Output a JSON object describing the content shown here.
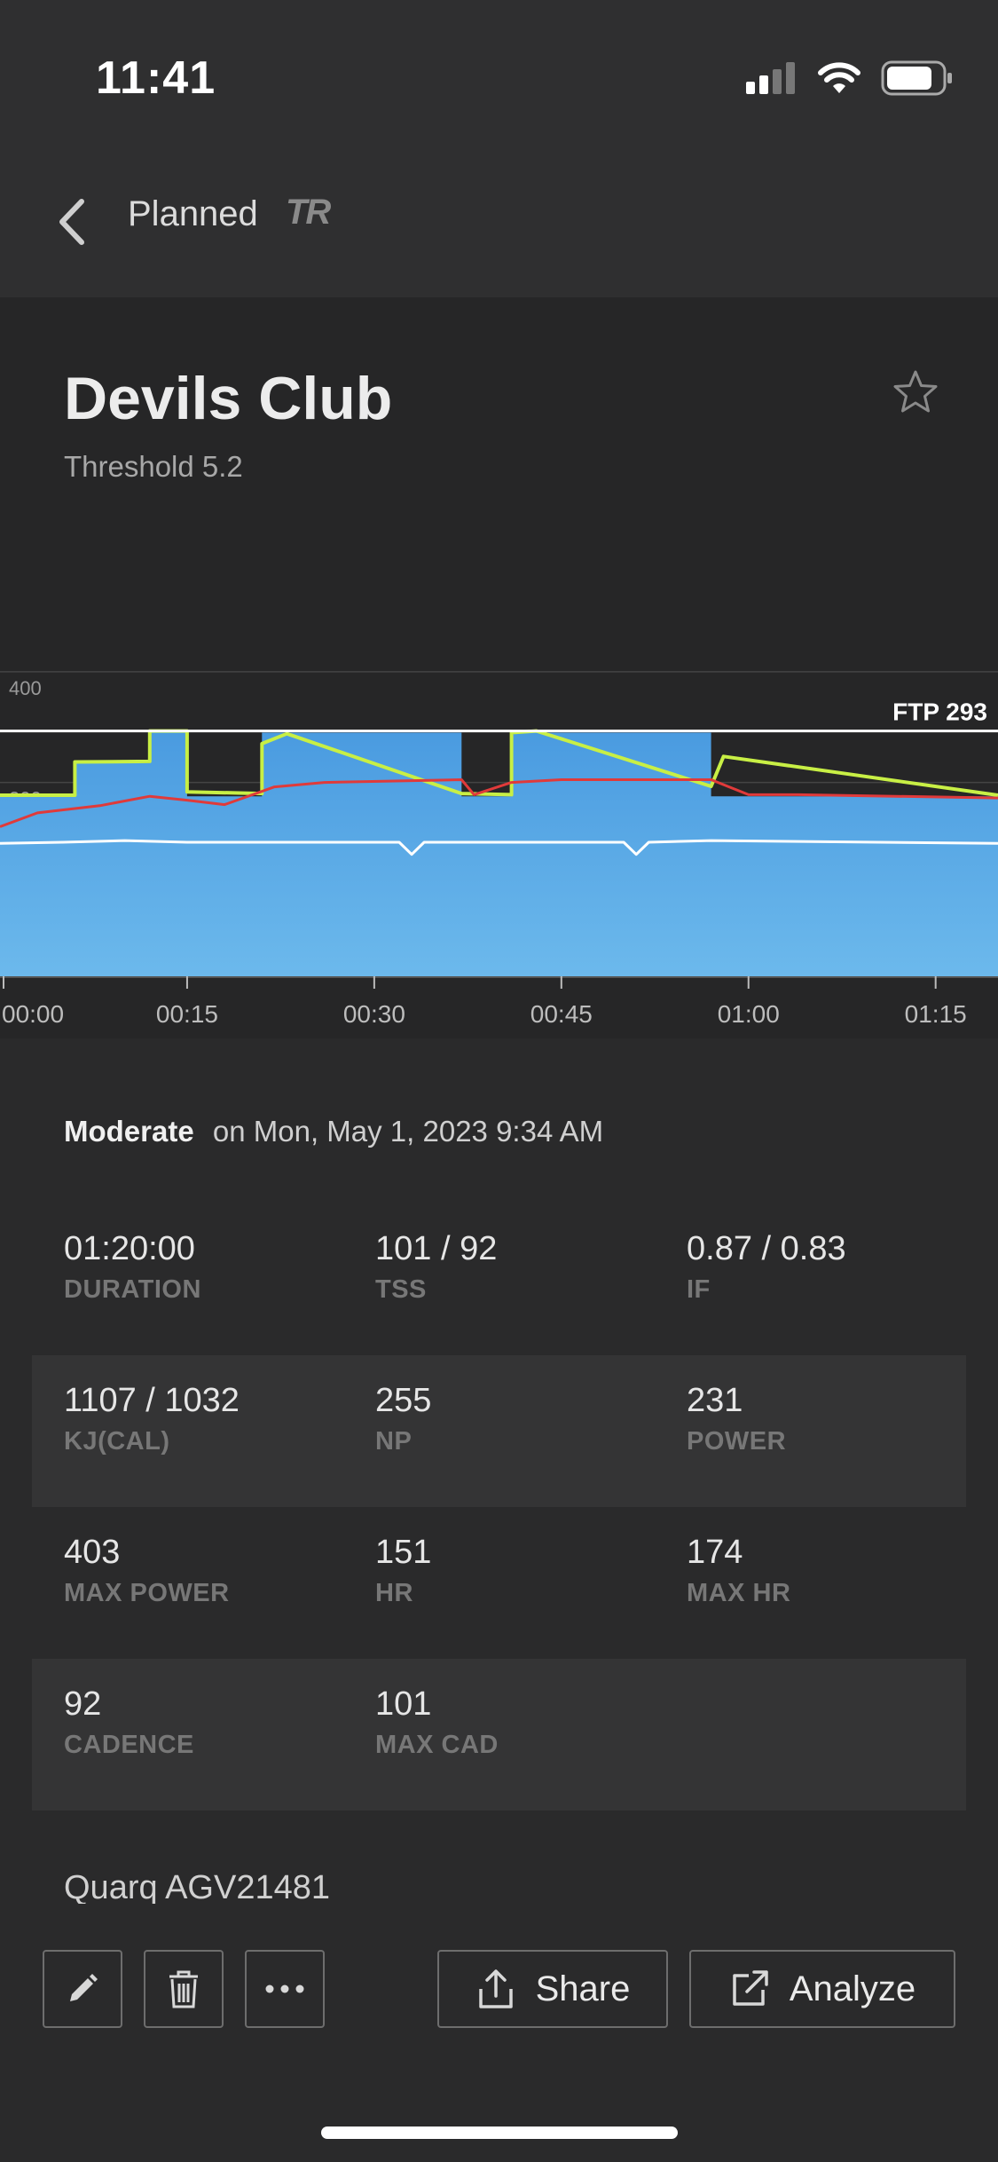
{
  "status_bar": {
    "time": "11:41"
  },
  "nav": {
    "title": "Planned",
    "logo": "TR"
  },
  "workout": {
    "title": "Devils Club",
    "subtitle": "Threshold 5.2"
  },
  "chart_data": {
    "type": "area",
    "x_ticks": [
      "00:00",
      "00:15",
      "00:30",
      "00:45",
      "01:00",
      "01:15"
    ],
    "y_ticks": [
      "400",
      "200"
    ],
    "ftp_label": "FTP 293",
    "x_unit_minutes": [
      0,
      15,
      30,
      45,
      60,
      75
    ],
    "ylim": [
      -150,
      435
    ],
    "ftp": 293,
    "series": [
      {
        "key": "target",
        "color": "#57a8e6",
        "x": [
          0,
          6,
          6,
          12,
          12,
          15,
          15,
          21,
          21,
          37,
          37,
          41,
          41,
          57,
          57,
          80
        ],
        "values": [
          175,
          175,
          235,
          235,
          290,
          290,
          175,
          175,
          290,
          290,
          175,
          175,
          290,
          290,
          175,
          175
        ]
      },
      {
        "key": "power",
        "color": "#c8ef45",
        "x": [
          0,
          6,
          6,
          12,
          12,
          15,
          15,
          21,
          21,
          23,
          37,
          41,
          41,
          43,
          57,
          58,
          80
        ],
        "values": [
          177,
          177,
          237,
          238,
          293,
          293,
          183,
          180,
          270,
          288,
          180,
          178,
          290,
          293,
          193,
          247,
          177
        ]
      },
      {
        "key": "heart_rate",
        "color": "#e03a3a",
        "x": [
          0,
          3,
          8,
          12,
          15,
          18,
          22,
          26,
          37,
          38,
          41,
          45,
          57,
          60,
          64,
          80
        ],
        "values": [
          120,
          145,
          158,
          175,
          168,
          160,
          192,
          200,
          205,
          178,
          200,
          205,
          205,
          178,
          178,
          172
        ]
      },
      {
        "key": "cadence",
        "color": "#ffffff",
        "x": [
          0,
          5,
          10,
          15,
          20,
          32,
          33,
          34,
          50,
          51,
          52,
          57,
          80
        ],
        "values": [
          90,
          92,
          95,
          92,
          92,
          92,
          70,
          92,
          92,
          70,
          92,
          95,
          90
        ]
      }
    ]
  },
  "summary": {
    "intensity": "Moderate",
    "date_text": "on Mon, May 1, 2023 9:34 AM"
  },
  "stats": [
    [
      {
        "value": "01:20:00",
        "label": "DURATION"
      },
      {
        "value": "101 / 92",
        "label": "TSS"
      },
      {
        "value": "0.87 / 0.83",
        "label": "IF"
      }
    ],
    [
      {
        "value": "1107 / 1032",
        "label": "KJ(CAL)"
      },
      {
        "value": "255",
        "label": "NP"
      },
      {
        "value": "231",
        "label": "POWER"
      }
    ],
    [
      {
        "value": "403",
        "label": "MAX POWER"
      },
      {
        "value": "151",
        "label": "HR"
      },
      {
        "value": "174",
        "label": "MAX HR"
      }
    ],
    [
      {
        "value": "92",
        "label": "CADENCE"
      },
      {
        "value": "101",
        "label": "MAX CAD"
      }
    ]
  ],
  "device": "Quarq AGV21481",
  "toolbar": {
    "share_label": "Share",
    "analyze_label": "Analyze"
  },
  "icons": [
    "signal-icon",
    "wifi-icon",
    "battery-icon",
    "back-chevron-icon",
    "star-icon",
    "pencil-icon",
    "trash-icon",
    "more-icon",
    "share-icon",
    "external-link-icon"
  ]
}
